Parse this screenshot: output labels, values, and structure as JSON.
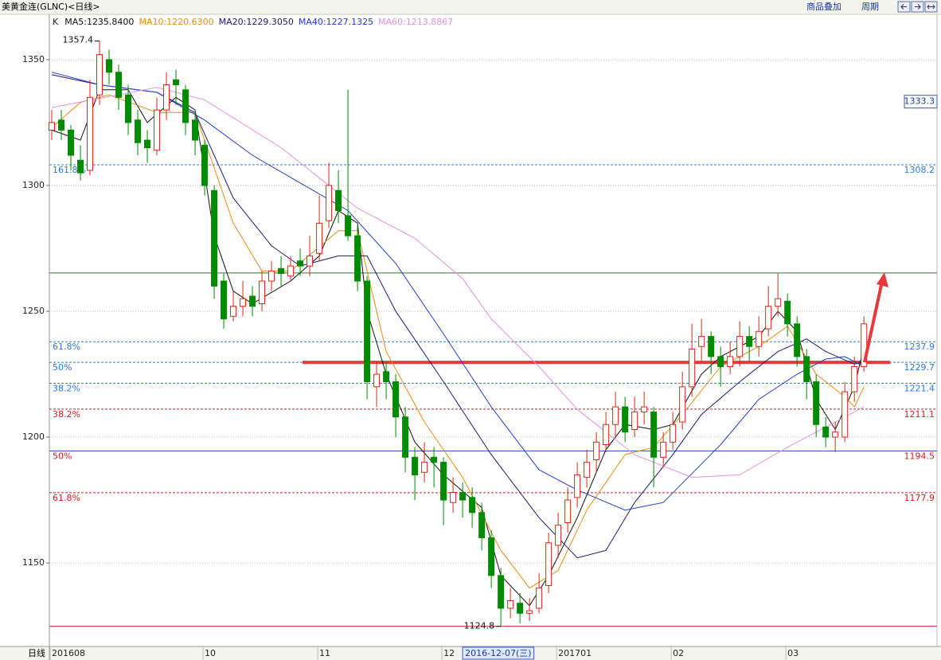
{
  "header": {
    "title": "美黄金连(GLNC)<日线>",
    "menu": [
      "商品叠加",
      "周期"
    ],
    "period_label": "日线"
  },
  "chart_data": {
    "type": "candlestick",
    "kline_label": "K",
    "up_color": "#e8201a",
    "down_color": "#008a00",
    "xlim": [
      -0.25,
      92.65
    ],
    "ylim": [
      1116.8,
      1368
    ],
    "yticks": [
      1150,
      1200,
      1250,
      1300,
      1350
    ],
    "grid": true,
    "xticks": [
      {
        "value": 0,
        "label": "201608"
      },
      {
        "value": 16,
        "label": "10"
      },
      {
        "value": 28,
        "label": "11"
      },
      {
        "value": 41,
        "label": "12"
      },
      {
        "value": 53,
        "label": "201701"
      },
      {
        "value": 65,
        "label": "02"
      },
      {
        "value": 77,
        "label": "03"
      }
    ],
    "cursor_date": {
      "value": 47,
      "label": "2016-12-07(三)"
    },
    "cursor_value": 1333.3,
    "high_mark": 5,
    "low_mark": 47,
    "x": [
      0,
      1,
      2,
      3,
      4,
      5,
      6,
      7,
      8,
      9,
      10,
      11,
      12,
      13,
      14,
      15,
      16,
      17,
      18,
      19,
      20,
      21,
      22,
      23,
      24,
      25,
      26,
      27,
      28,
      29,
      30,
      31,
      32,
      33,
      34,
      35,
      36,
      37,
      38,
      39,
      40,
      41,
      42,
      43,
      44,
      45,
      46,
      47,
      48,
      49,
      50,
      51,
      52,
      53,
      54,
      55,
      56,
      57,
      58,
      59,
      60,
      61,
      62,
      63,
      64,
      65,
      66,
      67,
      68,
      69,
      70,
      71,
      72,
      73,
      74,
      75,
      76,
      77,
      78,
      79,
      80,
      81,
      82,
      83,
      84,
      85
    ],
    "candles": [
      [
        1322,
        1330,
        1318,
        1325
      ],
      [
        1326,
        1330,
        1318,
        1322
      ],
      [
        1322,
        1324,
        1306,
        1312
      ],
      [
        1310,
        1316,
        1302,
        1305
      ],
      [
        1306,
        1342,
        1304,
        1335
      ],
      [
        1336,
        1357.4,
        1332,
        1352
      ],
      [
        1350,
        1354,
        1340,
        1345
      ],
      [
        1345,
        1348,
        1330,
        1335
      ],
      [
        1336,
        1340,
        1320,
        1325
      ],
      [
        1326,
        1330,
        1312,
        1317
      ],
      [
        1318,
        1322,
        1309,
        1315
      ],
      [
        1314,
        1335,
        1312,
        1330
      ],
      [
        1330,
        1345,
        1326,
        1340
      ],
      [
        1342,
        1346,
        1332,
        1340
      ],
      [
        1338,
        1340,
        1320,
        1325
      ],
      [
        1326,
        1330,
        1312,
        1318
      ],
      [
        1316,
        1318,
        1296,
        1300
      ],
      [
        1298,
        1300,
        1255,
        1260
      ],
      [
        1262,
        1265,
        1243,
        1247
      ],
      [
        1248,
        1258,
        1246,
        1252
      ],
      [
        1252,
        1262,
        1248,
        1255
      ],
      [
        1256,
        1260,
        1248,
        1252
      ],
      [
        1253,
        1266,
        1250,
        1262
      ],
      [
        1262,
        1270,
        1258,
        1266
      ],
      [
        1267,
        1272,
        1260,
        1265
      ],
      [
        1264,
        1272,
        1262,
        1268
      ],
      [
        1270,
        1275,
        1264,
        1268
      ],
      [
        1268,
        1280,
        1264,
        1272
      ],
      [
        1273,
        1296,
        1270,
        1285
      ],
      [
        1286,
        1309,
        1283,
        1300
      ],
      [
        1298,
        1306,
        1285,
        1290
      ],
      [
        1288,
        1338,
        1278,
        1280
      ],
      [
        1280,
        1284,
        1258,
        1262
      ],
      [
        1262,
        1264,
        1215,
        1222
      ],
      [
        1220,
        1230,
        1212,
        1225
      ],
      [
        1226,
        1230,
        1215,
        1222
      ],
      [
        1222,
        1225,
        1200,
        1208
      ],
      [
        1208,
        1212,
        1186,
        1192
      ],
      [
        1192,
        1196,
        1175,
        1185
      ],
      [
        1186,
        1198,
        1182,
        1190
      ],
      [
        1192,
        1196,
        1180,
        1190
      ],
      [
        1190,
        1192,
        1165,
        1175
      ],
      [
        1174,
        1184,
        1170,
        1178
      ],
      [
        1178,
        1182,
        1168,
        1175
      ],
      [
        1176,
        1180,
        1164,
        1170
      ],
      [
        1170,
        1174,
        1155,
        1160
      ],
      [
        1160,
        1163,
        1140,
        1145
      ],
      [
        1145,
        1148,
        1124.8,
        1132
      ],
      [
        1132,
        1140,
        1128,
        1135
      ],
      [
        1134,
        1138,
        1126,
        1130
      ],
      [
        1130,
        1136,
        1127,
        1131
      ],
      [
        1132,
        1146,
        1130,
        1140
      ],
      [
        1141,
        1162,
        1138,
        1158
      ],
      [
        1157,
        1170,
        1152,
        1165
      ],
      [
        1166,
        1180,
        1162,
        1175
      ],
      [
        1176,
        1190,
        1172,
        1185
      ],
      [
        1184,
        1195,
        1180,
        1190
      ],
      [
        1191,
        1202,
        1186,
        1198
      ],
      [
        1197,
        1210,
        1194,
        1205
      ],
      [
        1205,
        1218,
        1200,
        1212
      ],
      [
        1212,
        1216,
        1198,
        1202
      ],
      [
        1203,
        1216,
        1200,
        1210
      ],
      [
        1210,
        1218,
        1205,
        1212
      ],
      [
        1210,
        1212,
        1180,
        1192
      ],
      [
        1192,
        1202,
        1188,
        1198
      ],
      [
        1198,
        1210,
        1195,
        1205
      ],
      [
        1206,
        1226,
        1203,
        1220
      ],
      [
        1220,
        1245,
        1216,
        1235
      ],
      [
        1236,
        1247,
        1230,
        1240
      ],
      [
        1240,
        1242,
        1225,
        1232
      ],
      [
        1232,
        1236,
        1220,
        1228
      ],
      [
        1228,
        1238,
        1225,
        1232
      ],
      [
        1232,
        1246,
        1228,
        1240
      ],
      [
        1240,
        1244,
        1230,
        1236
      ],
      [
        1236,
        1248,
        1232,
        1242
      ],
      [
        1243,
        1260,
        1240,
        1252
      ],
      [
        1252,
        1265,
        1248,
        1255
      ],
      [
        1254,
        1257,
        1240,
        1245
      ],
      [
        1245,
        1248,
        1228,
        1232
      ],
      [
        1232,
        1235,
        1215,
        1222
      ],
      [
        1222,
        1225,
        1200,
        1205
      ],
      [
        1204,
        1208,
        1196,
        1200
      ],
      [
        1200,
        1206,
        1194,
        1202
      ],
      [
        1200,
        1222,
        1198,
        1218
      ],
      [
        1218,
        1232,
        1214,
        1228
      ],
      [
        1228,
        1248,
        1226,
        1245
      ]
    ],
    "series": [
      {
        "name": "MA5:1235.8400",
        "color": "#111111",
        "x": [
          0,
          3,
          5,
          8,
          10,
          13,
          15,
          17,
          19,
          21,
          25,
          28,
          30,
          32,
          33,
          35,
          38,
          41,
          45,
          47,
          50,
          52,
          55,
          58,
          60,
          63,
          65,
          68,
          70,
          74,
          76,
          78,
          80,
          82,
          84,
          85
        ],
        "values": [
          1322,
          1318,
          1338,
          1338,
          1325,
          1335,
          1330,
          1280,
          1258,
          1253,
          1262,
          1272,
          1290,
          1285,
          1250,
          1225,
          1198,
          1185,
          1172,
          1145,
          1133,
          1145,
          1168,
          1195,
          1205,
          1203,
          1205,
          1225,
          1232,
          1240,
          1250,
          1242,
          1215,
          1203,
          1220,
          1236
        ]
      },
      {
        "name": "MA10:1220.6300",
        "color": "#f08a10",
        "x": [
          0,
          3,
          6,
          11,
          15,
          19,
          22,
          25,
          30,
          32,
          35,
          39,
          43,
          47,
          50,
          53,
          56,
          60,
          63,
          66,
          70,
          74,
          77,
          80,
          83,
          84,
          85
        ],
        "values": [
          1323,
          1333,
          1336,
          1329,
          1329,
          1285,
          1266,
          1266,
          1282,
          1282,
          1234,
          1206,
          1184,
          1155,
          1140,
          1147,
          1171,
          1193,
          1196,
          1209,
          1228,
          1236,
          1244,
          1225,
          1216,
          1212,
          1220
        ]
      },
      {
        "name": "MA20:1229.3050",
        "color": "#1a1a78",
        "x": [
          0,
          5,
          11,
          15,
          19,
          23,
          26,
          30,
          33,
          36,
          41,
          46,
          51,
          55,
          58,
          61,
          65,
          68,
          72,
          76,
          79,
          81,
          84,
          85
        ],
        "values": [
          1344,
          1340,
          1337,
          1329,
          1295,
          1276,
          1268,
          1272,
          1272,
          1250,
          1222,
          1193,
          1168,
          1152,
          1155,
          1174,
          1193,
          1209,
          1222,
          1234,
          1239,
          1234,
          1229,
          1230
        ]
      },
      {
        "name": "MA40:1227.1325",
        "color": "#1f3fd0",
        "x": [
          0,
          5,
          11,
          16,
          21,
          26,
          31,
          36,
          41,
          46,
          51,
          55,
          60,
          64,
          70,
          74,
          78,
          81,
          83,
          85
        ],
        "values": [
          1345,
          1340,
          1337,
          1326,
          1312,
          1301,
          1290,
          1269,
          1241,
          1212,
          1187,
          1179,
          1171,
          1174,
          1197,
          1215,
          1225,
          1231,
          1232,
          1228
        ]
      },
      {
        "name": "MA60:1213.8867",
        "color": "#e590e5",
        "x": [
          0,
          11,
          16,
          24,
          32,
          38,
          43,
          46,
          51,
          55,
          61,
          67,
          72,
          77,
          82,
          85
        ],
        "values": [
          1331,
          1339,
          1334,
          1315,
          1291,
          1279,
          1263,
          1247,
          1228,
          1211,
          1193,
          1184,
          1185,
          1196,
          1206,
          1212
        ]
      }
    ],
    "ref_lines": [
      {
        "value": 1308.2,
        "color": "#2a78e4",
        "style": "dashed",
        "label": "161.8%",
        "show_value": true
      },
      {
        "value": 1265.2,
        "color": "#2a7a2a",
        "style": "solid",
        "show_value": false
      },
      {
        "value": 1237.9,
        "color": "#2a78e4",
        "style": "dashed",
        "label": "61.8%",
        "show_value": true
      },
      {
        "value": 1229.7,
        "color": "#2a78e4",
        "style": "dashed",
        "label": "50%",
        "show_value": true
      },
      {
        "value": 1221.4,
        "color": "#2a78e4",
        "style": "dashed",
        "label": "38.2%",
        "show_value": true
      },
      {
        "value": 1211.1,
        "color": "#d42020",
        "style": "dashed",
        "label": "38.2%",
        "show_value": true
      },
      {
        "value": 1194.5,
        "color": "#2050b0",
        "label_color": "#d42020",
        "style": "solid",
        "label": "50%",
        "show_value": true
      },
      {
        "value": 1177.9,
        "color": "#d42020",
        "style": "dashed",
        "label": "61.8%",
        "show_value": true
      },
      {
        "value": 1124.8,
        "color": "#c02020",
        "style": "solid",
        "show_value": false
      }
    ],
    "trend_line": {
      "x": [
        26.25,
        87.75
      ],
      "y": [
        1229.7,
        1229.7
      ],
      "color": "#e53a3a"
    }
  }
}
